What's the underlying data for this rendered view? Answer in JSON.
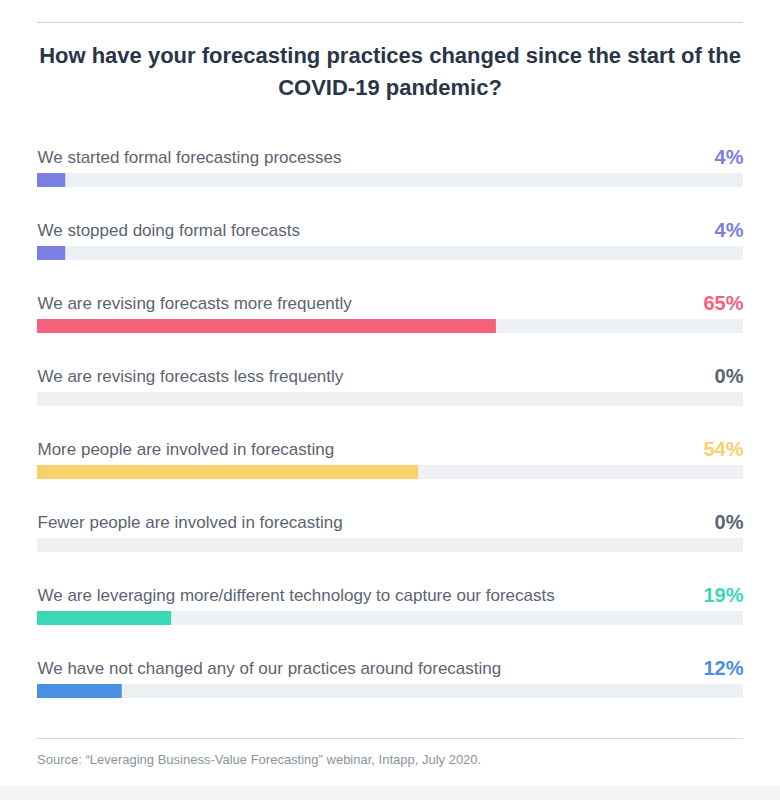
{
  "chart_data": {
    "type": "bar",
    "orientation": "horizontal",
    "title": "How have your forecasting practices changed since the start of the COVID-19 pandemic?",
    "caption": "Source: “Leveraging Business-Value Forecasting” webinar, Intapp, July 2020.",
    "categories": [
      "We started formal forecasting processes",
      "We stopped doing formal forecasts",
      "We are revising forecasts more frequently",
      "We are revising forecasts less frequently",
      "More people are involved in forecasting",
      "Fewer people are involved in forecasting",
      "We are leveraging more/different technology to capture our forecasts",
      "We have not changed any of our practices around forecasting"
    ],
    "values": [
      4,
      4,
      65,
      0,
      54,
      0,
      19,
      12
    ],
    "value_labels": [
      "4%",
      "4%",
      "65%",
      "0%",
      "54%",
      "0%",
      "19%",
      "12%"
    ],
    "colors": [
      "#7b80e0",
      "#7b80e0",
      "#f5607a",
      "#5b6472",
      "#f8d06e",
      "#5b6472",
      "#3ad8b5",
      "#4a90e2"
    ],
    "xlim": [
      0,
      100
    ],
    "data_labels": true,
    "tick_labels": false,
    "grid": false
  }
}
